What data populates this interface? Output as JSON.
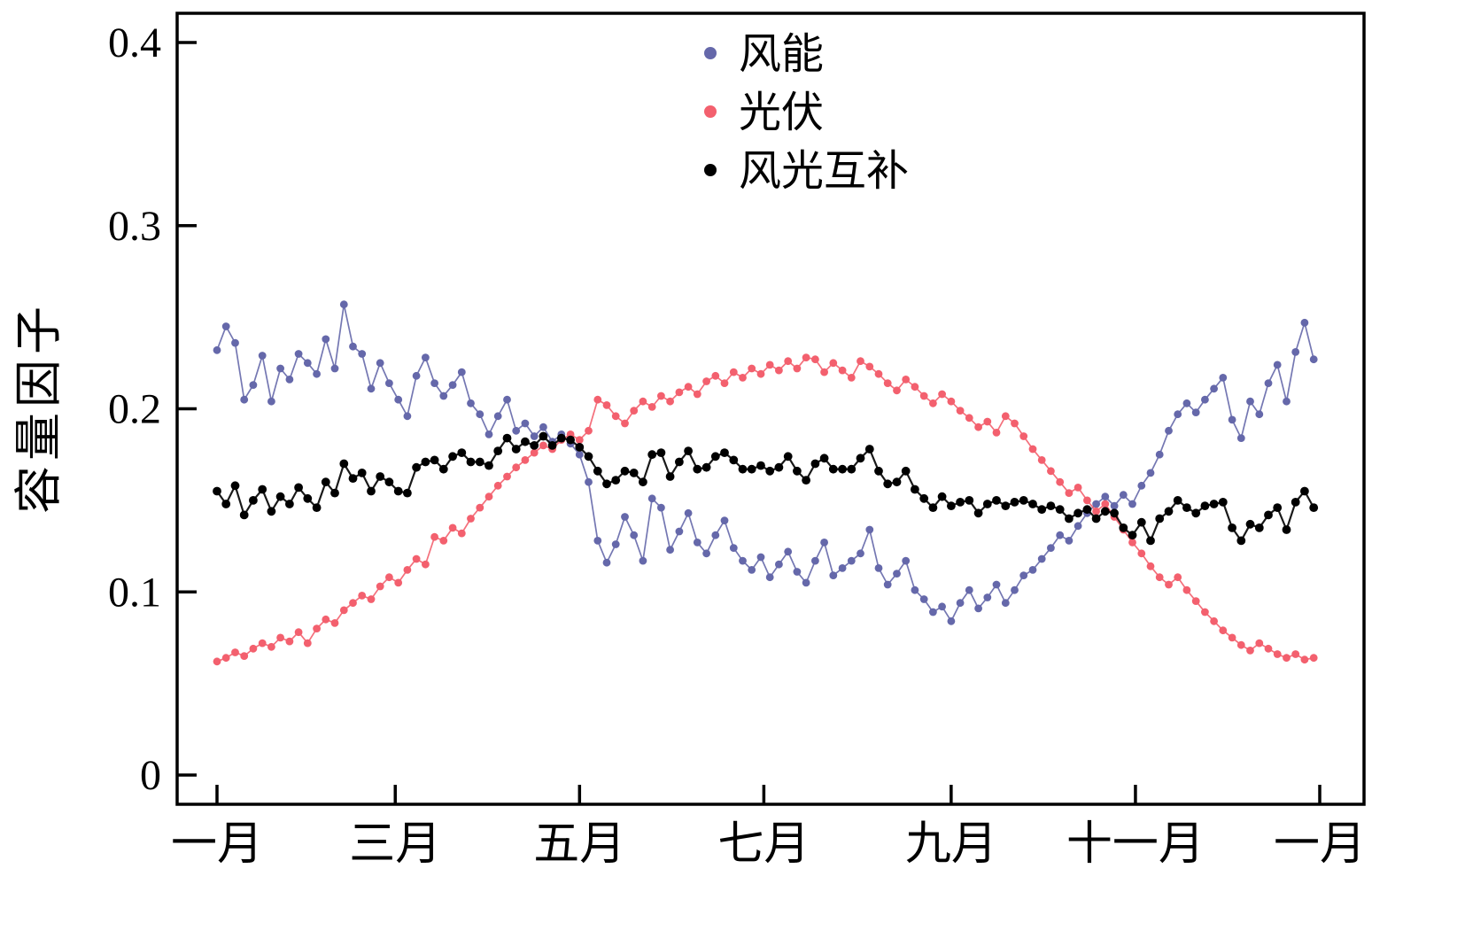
{
  "chart_data": {
    "type": "scatter",
    "title": "",
    "xlabel": "",
    "ylabel": "容量因子",
    "x_unit": "day_of_year",
    "x_step_days": 3,
    "xlim_days": [
      0,
      365
    ],
    "ylim": [
      0,
      0.4
    ],
    "y_ticks": [
      0,
      0.1,
      0.2,
      0.3,
      0.4
    ],
    "y_tick_labels": [
      "0",
      "0.1",
      "0.2",
      "0.3",
      "0.4"
    ],
    "x_ticks_days": [
      0,
      59,
      120,
      181,
      243,
      304,
      365
    ],
    "x_tick_labels": [
      "一月",
      "三月",
      "五月",
      "七月",
      "九月",
      "十一月",
      "一月"
    ],
    "grid": false,
    "legend_position": "top-center",
    "axis_color": "#000000",
    "series": [
      {
        "name": "风能",
        "color": "#6568aa",
        "marker": "dot",
        "values": [
          0.232,
          0.245,
          0.236,
          0.205,
          0.213,
          0.229,
          0.204,
          0.222,
          0.216,
          0.23,
          0.225,
          0.219,
          0.238,
          0.222,
          0.257,
          0.234,
          0.23,
          0.211,
          0.225,
          0.214,
          0.205,
          0.196,
          0.218,
          0.228,
          0.214,
          0.207,
          0.213,
          0.22,
          0.203,
          0.197,
          0.186,
          0.196,
          0.205,
          0.188,
          0.192,
          0.185,
          0.19,
          0.182,
          0.186,
          0.181,
          0.175,
          0.16,
          0.128,
          0.116,
          0.126,
          0.141,
          0.131,
          0.117,
          0.151,
          0.146,
          0.123,
          0.133,
          0.143,
          0.127,
          0.121,
          0.131,
          0.139,
          0.124,
          0.117,
          0.112,
          0.119,
          0.108,
          0.115,
          0.122,
          0.111,
          0.105,
          0.117,
          0.127,
          0.109,
          0.113,
          0.117,
          0.121,
          0.134,
          0.113,
          0.104,
          0.11,
          0.117,
          0.101,
          0.096,
          0.089,
          0.092,
          0.084,
          0.094,
          0.101,
          0.091,
          0.097,
          0.104,
          0.094,
          0.101,
          0.109,
          0.112,
          0.118,
          0.124,
          0.131,
          0.128,
          0.136,
          0.143,
          0.148,
          0.152,
          0.147,
          0.153,
          0.148,
          0.158,
          0.165,
          0.175,
          0.188,
          0.197,
          0.203,
          0.198,
          0.205,
          0.211,
          0.217,
          0.194,
          0.184,
          0.204,
          0.197,
          0.214,
          0.224,
          0.204,
          0.231,
          0.247,
          0.227
        ]
      },
      {
        "name": "光伏",
        "color": "#f3606e",
        "marker": "dot",
        "values": [
          0.062,
          0.064,
          0.067,
          0.065,
          0.069,
          0.072,
          0.07,
          0.075,
          0.073,
          0.078,
          0.072,
          0.08,
          0.085,
          0.083,
          0.09,
          0.094,
          0.098,
          0.096,
          0.103,
          0.108,
          0.105,
          0.112,
          0.118,
          0.115,
          0.13,
          0.128,
          0.135,
          0.132,
          0.14,
          0.146,
          0.152,
          0.158,
          0.163,
          0.168,
          0.172,
          0.176,
          0.18,
          0.178,
          0.183,
          0.186,
          0.183,
          0.188,
          0.205,
          0.202,
          0.196,
          0.192,
          0.199,
          0.204,
          0.201,
          0.207,
          0.204,
          0.209,
          0.212,
          0.208,
          0.215,
          0.218,
          0.214,
          0.22,
          0.217,
          0.222,
          0.219,
          0.224,
          0.221,
          0.226,
          0.222,
          0.228,
          0.227,
          0.22,
          0.225,
          0.221,
          0.217,
          0.226,
          0.223,
          0.219,
          0.214,
          0.21,
          0.216,
          0.212,
          0.207,
          0.203,
          0.208,
          0.204,
          0.199,
          0.195,
          0.19,
          0.193,
          0.187,
          0.196,
          0.192,
          0.185,
          0.178,
          0.172,
          0.166,
          0.16,
          0.154,
          0.157,
          0.15,
          0.144,
          0.148,
          0.141,
          0.134,
          0.127,
          0.121,
          0.114,
          0.108,
          0.104,
          0.108,
          0.101,
          0.095,
          0.089,
          0.084,
          0.079,
          0.075,
          0.071,
          0.068,
          0.072,
          0.069,
          0.066,
          0.064,
          0.066,
          0.063,
          0.064
        ]
      },
      {
        "name": "风光互补",
        "color": "#000000",
        "marker": "dot",
        "values": [
          0.155,
          0.148,
          0.158,
          0.142,
          0.15,
          0.156,
          0.144,
          0.152,
          0.148,
          0.157,
          0.151,
          0.146,
          0.16,
          0.154,
          0.17,
          0.162,
          0.165,
          0.155,
          0.163,
          0.16,
          0.155,
          0.154,
          0.168,
          0.171,
          0.172,
          0.167,
          0.174,
          0.176,
          0.171,
          0.171,
          0.169,
          0.177,
          0.184,
          0.178,
          0.182,
          0.18,
          0.185,
          0.18,
          0.184,
          0.183,
          0.179,
          0.174,
          0.166,
          0.159,
          0.161,
          0.166,
          0.165,
          0.16,
          0.175,
          0.176,
          0.163,
          0.171,
          0.177,
          0.167,
          0.168,
          0.174,
          0.176,
          0.172,
          0.167,
          0.167,
          0.169,
          0.166,
          0.168,
          0.174,
          0.166,
          0.161,
          0.17,
          0.173,
          0.167,
          0.167,
          0.167,
          0.173,
          0.178,
          0.166,
          0.159,
          0.16,
          0.166,
          0.156,
          0.151,
          0.146,
          0.152,
          0.147,
          0.149,
          0.15,
          0.143,
          0.148,
          0.15,
          0.147,
          0.149,
          0.15,
          0.148,
          0.145,
          0.147,
          0.145,
          0.14,
          0.143,
          0.145,
          0.14,
          0.144,
          0.143,
          0.135,
          0.131,
          0.138,
          0.128,
          0.14,
          0.144,
          0.15,
          0.146,
          0.143,
          0.147,
          0.148,
          0.149,
          0.135,
          0.128,
          0.137,
          0.135,
          0.142,
          0.146,
          0.134,
          0.149,
          0.155,
          0.146
        ]
      }
    ]
  }
}
